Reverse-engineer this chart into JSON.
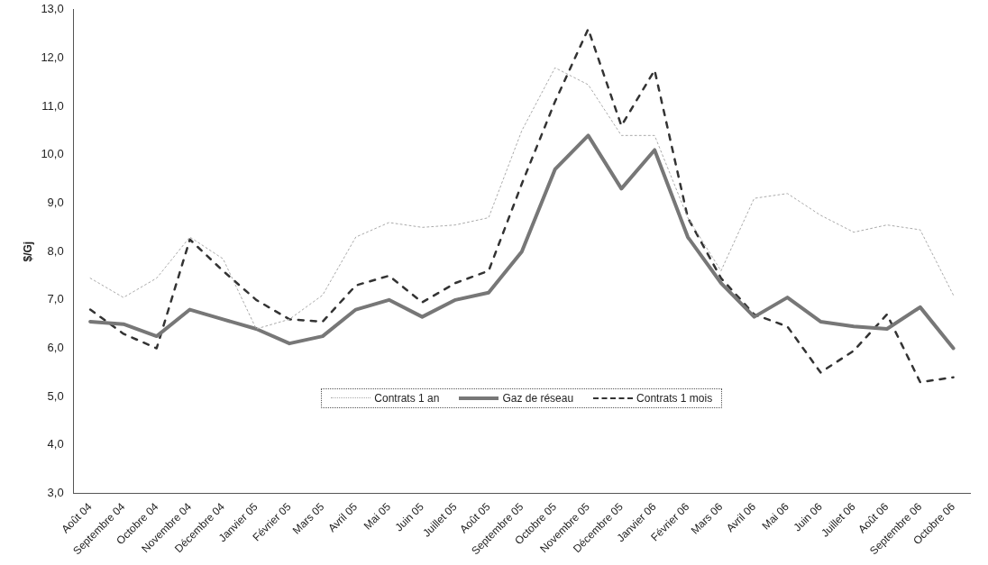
{
  "chart_data": {
    "type": "line",
    "ylabel": "$/Gj",
    "categories": [
      "Août 04",
      "Septembre 04",
      "Octobre 04",
      "Novembre 04",
      "Décembre 04",
      "Janvier 05",
      "Février 05",
      "Mars 05",
      "Avril 05",
      "Mai 05",
      "Juin 05",
      "Juillet 05",
      "Août 05",
      "Septembre 05",
      "Octobre 05",
      "Novembre 05",
      "Décembre 05",
      "Janvier 06",
      "Février 06",
      "Mars 06",
      "Avril 06",
      "Mai 06",
      "Juin 06",
      "Juillet 06",
      "Août 06",
      "Septembre 06",
      "Octobre 06"
    ],
    "series": [
      {
        "name": "Contrats  1 an",
        "color": "#aaaaaa",
        "line_style": "dotted",
        "values": [
          7.45,
          7.05,
          7.45,
          8.3,
          7.85,
          6.4,
          6.6,
          7.1,
          8.3,
          8.6,
          8.5,
          8.55,
          8.7,
          10.5,
          11.8,
          11.45,
          10.4,
          10.4,
          8.7,
          7.6,
          9.1,
          9.2,
          8.75,
          8.4,
          8.55,
          8.45,
          7.1
        ]
      },
      {
        "name": "Gaz de réseau",
        "color": "#777777",
        "line_style": "solid",
        "values": [
          6.55,
          6.5,
          6.25,
          6.8,
          6.6,
          6.4,
          6.1,
          6.25,
          6.8,
          7.0,
          6.65,
          7.0,
          7.15,
          8.0,
          9.7,
          10.4,
          9.3,
          10.1,
          8.3,
          7.35,
          6.65,
          7.05,
          6.55,
          6.45,
          6.4,
          6.85,
          6.0
        ]
      },
      {
        "name": "Contrats 1 mois",
        "color": "#333333",
        "line_style": "dashed",
        "values": [
          6.8,
          6.3,
          6.0,
          8.25,
          7.6,
          7.0,
          6.6,
          6.55,
          7.3,
          7.5,
          6.95,
          7.35,
          7.6,
          9.4,
          11.1,
          12.6,
          10.6,
          11.75,
          8.7,
          7.45,
          6.7,
          6.45,
          5.5,
          5.95,
          6.7,
          5.3,
          5.4
        ]
      }
    ],
    "ylim": [
      3,
      13
    ],
    "yticks": [
      {
        "value": 3,
        "label": "3,0"
      },
      {
        "value": 4,
        "label": "4,0"
      },
      {
        "value": 5,
        "label": "5,0"
      },
      {
        "value": 6,
        "label": "6,0"
      },
      {
        "value": 7,
        "label": "7,0"
      },
      {
        "value": 8,
        "label": "8,0"
      },
      {
        "value": 9,
        "label": "9,0"
      },
      {
        "value": 10,
        "label": "10,0"
      },
      {
        "value": 11,
        "label": "11,0"
      },
      {
        "value": 12,
        "label": "12,0"
      },
      {
        "value": 13,
        "label": "13,0"
      }
    ],
    "legend": "bottom",
    "marker": "none"
  }
}
